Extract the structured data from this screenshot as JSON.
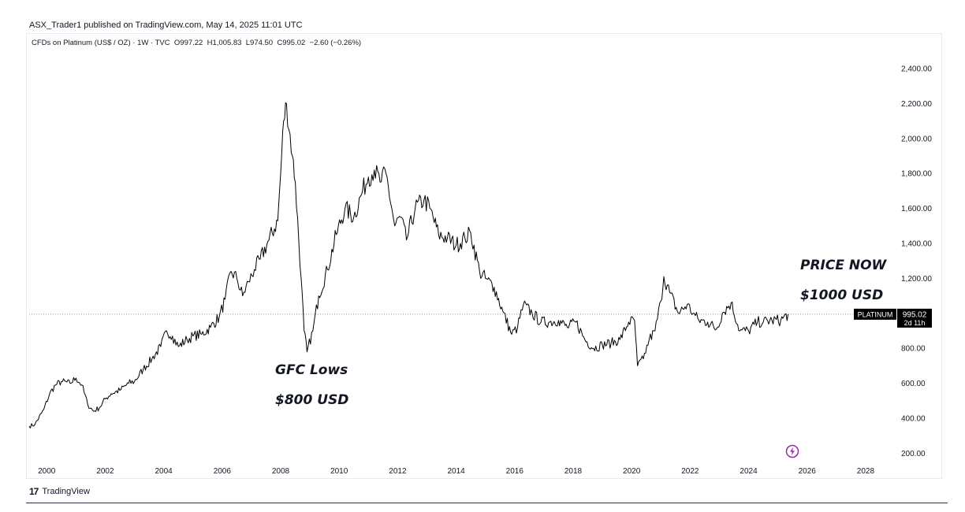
{
  "header": {
    "published": "ASX_Trader1 published on TradingView.com, May 14, 2025 11:01 UTC",
    "symbol": "CFDs on Platinum (US$ / OZ) · 1W · TVC",
    "open": "O997.22",
    "high": "H1,005.83",
    "low": "L974.50",
    "close": "C995.02",
    "change": "−2.60 (−0.26%)"
  },
  "price_label": {
    "name": "PLATINUM",
    "value": "995.02",
    "countdown": "2d 11h"
  },
  "annotations": {
    "gfc_title": "GFC Lows",
    "gfc_value": "$800 USD",
    "now_title": "PRICE NOW",
    "now_value": "$1000 USD"
  },
  "footer": {
    "logo_text": "TradingView",
    "logo_icon": "tradingview-logo-icon"
  },
  "colors": {
    "line": "#000000",
    "label_bg": "#000000",
    "label_text": "#ffffff",
    "axis_text": "#131722",
    "current_price_line": "#9598a1",
    "bolt_icon": "#9c27b0"
  },
  "chart_data": {
    "type": "line",
    "title": "",
    "xlabel": "",
    "ylabel": "",
    "xlim": [
      1999.4,
      2029.0
    ],
    "ylim": [
      134,
      2540
    ],
    "x_ticks": [
      "2000",
      "2002",
      "2004",
      "2006",
      "2008",
      "2010",
      "2012",
      "2014",
      "2016",
      "2018",
      "2020",
      "2022",
      "2024",
      "2026",
      "2028"
    ],
    "y_ticks": [
      "200.00",
      "400.00",
      "600.00",
      "800.00",
      "1,000.00",
      "1,200.00",
      "1,400.00",
      "1,600.00",
      "1,800.00",
      "2,000.00",
      "2,200.00",
      "2,400.00"
    ],
    "current_price": 995.02,
    "series": [
      {
        "x": [
          1999.4,
          1999.6,
          1999.9,
          2000.1,
          2000.3,
          2000.5,
          2000.8,
          2001.0,
          2001.2,
          2001.4,
          2001.6,
          2001.8,
          2002.0,
          2002.2,
          2002.5,
          2002.8,
          2003.0,
          2003.3,
          2003.6,
          2003.9,
          2004.1,
          2004.3,
          2004.5,
          2004.8,
          2005.0,
          2005.3,
          2005.6,
          2005.9,
          2006.1,
          2006.3,
          2006.5,
          2006.7,
          2006.9,
          2007.1,
          2007.3,
          2007.6,
          2007.9,
          2008.0,
          2008.1,
          2008.2,
          2008.4,
          2008.5,
          2008.7,
          2008.8,
          2008.9,
          2009.1,
          2009.3,
          2009.6,
          2009.9,
          2010.2,
          2010.5,
          2010.8,
          2011.0,
          2011.2,
          2011.4,
          2011.6,
          2011.8,
          2011.9,
          2012.1,
          2012.3,
          2012.6,
          2012.9,
          2013.1,
          2013.4,
          2013.7,
          2014.0,
          2014.3,
          2014.5,
          2014.8,
          2015.0,
          2015.3,
          2015.6,
          2015.9,
          2016.1,
          2016.3,
          2016.6,
          2016.9,
          2017.2,
          2017.5,
          2017.8,
          2018.1,
          2018.4,
          2018.7,
          2019.0,
          2019.3,
          2019.6,
          2019.9,
          2020.1,
          2020.2,
          2020.4,
          2020.6,
          2020.8,
          2021.0,
          2021.1,
          2021.3,
          2021.6,
          2021.9,
          2022.1,
          2022.3,
          2022.6,
          2022.9,
          2023.1,
          2023.4,
          2023.7,
          2024.0,
          2024.3,
          2024.5,
          2024.8,
          2025.1,
          2025.35
        ],
        "values": [
          355,
          365,
          450,
          540,
          590,
          610,
          600,
          630,
          590,
          480,
          440,
          460,
          510,
          540,
          560,
          600,
          610,
          680,
          740,
          810,
          900,
          870,
          810,
          850,
          870,
          880,
          920,
          980,
          1080,
          1240,
          1200,
          1100,
          1180,
          1250,
          1310,
          1420,
          1530,
          1800,
          2100,
          2200,
          1900,
          1750,
          1200,
          900,
          780,
          900,
          1100,
          1250,
          1450,
          1600,
          1550,
          1700,
          1780,
          1820,
          1750,
          1800,
          1600,
          1500,
          1550,
          1420,
          1600,
          1650,
          1600,
          1450,
          1430,
          1390,
          1430,
          1460,
          1240,
          1200,
          1150,
          1010,
          880,
          920,
          1050,
          1000,
          950,
          950,
          960,
          920,
          950,
          850,
          800,
          820,
          830,
          850,
          950,
          960,
          700,
          740,
          850,
          900,
          1070,
          1210,
          1120,
          1000,
          1050,
          1000,
          960,
          950,
          910,
          1000,
          1060,
          900,
          900,
          950,
          950,
          960,
          960,
          995.02
        ]
      }
    ]
  }
}
